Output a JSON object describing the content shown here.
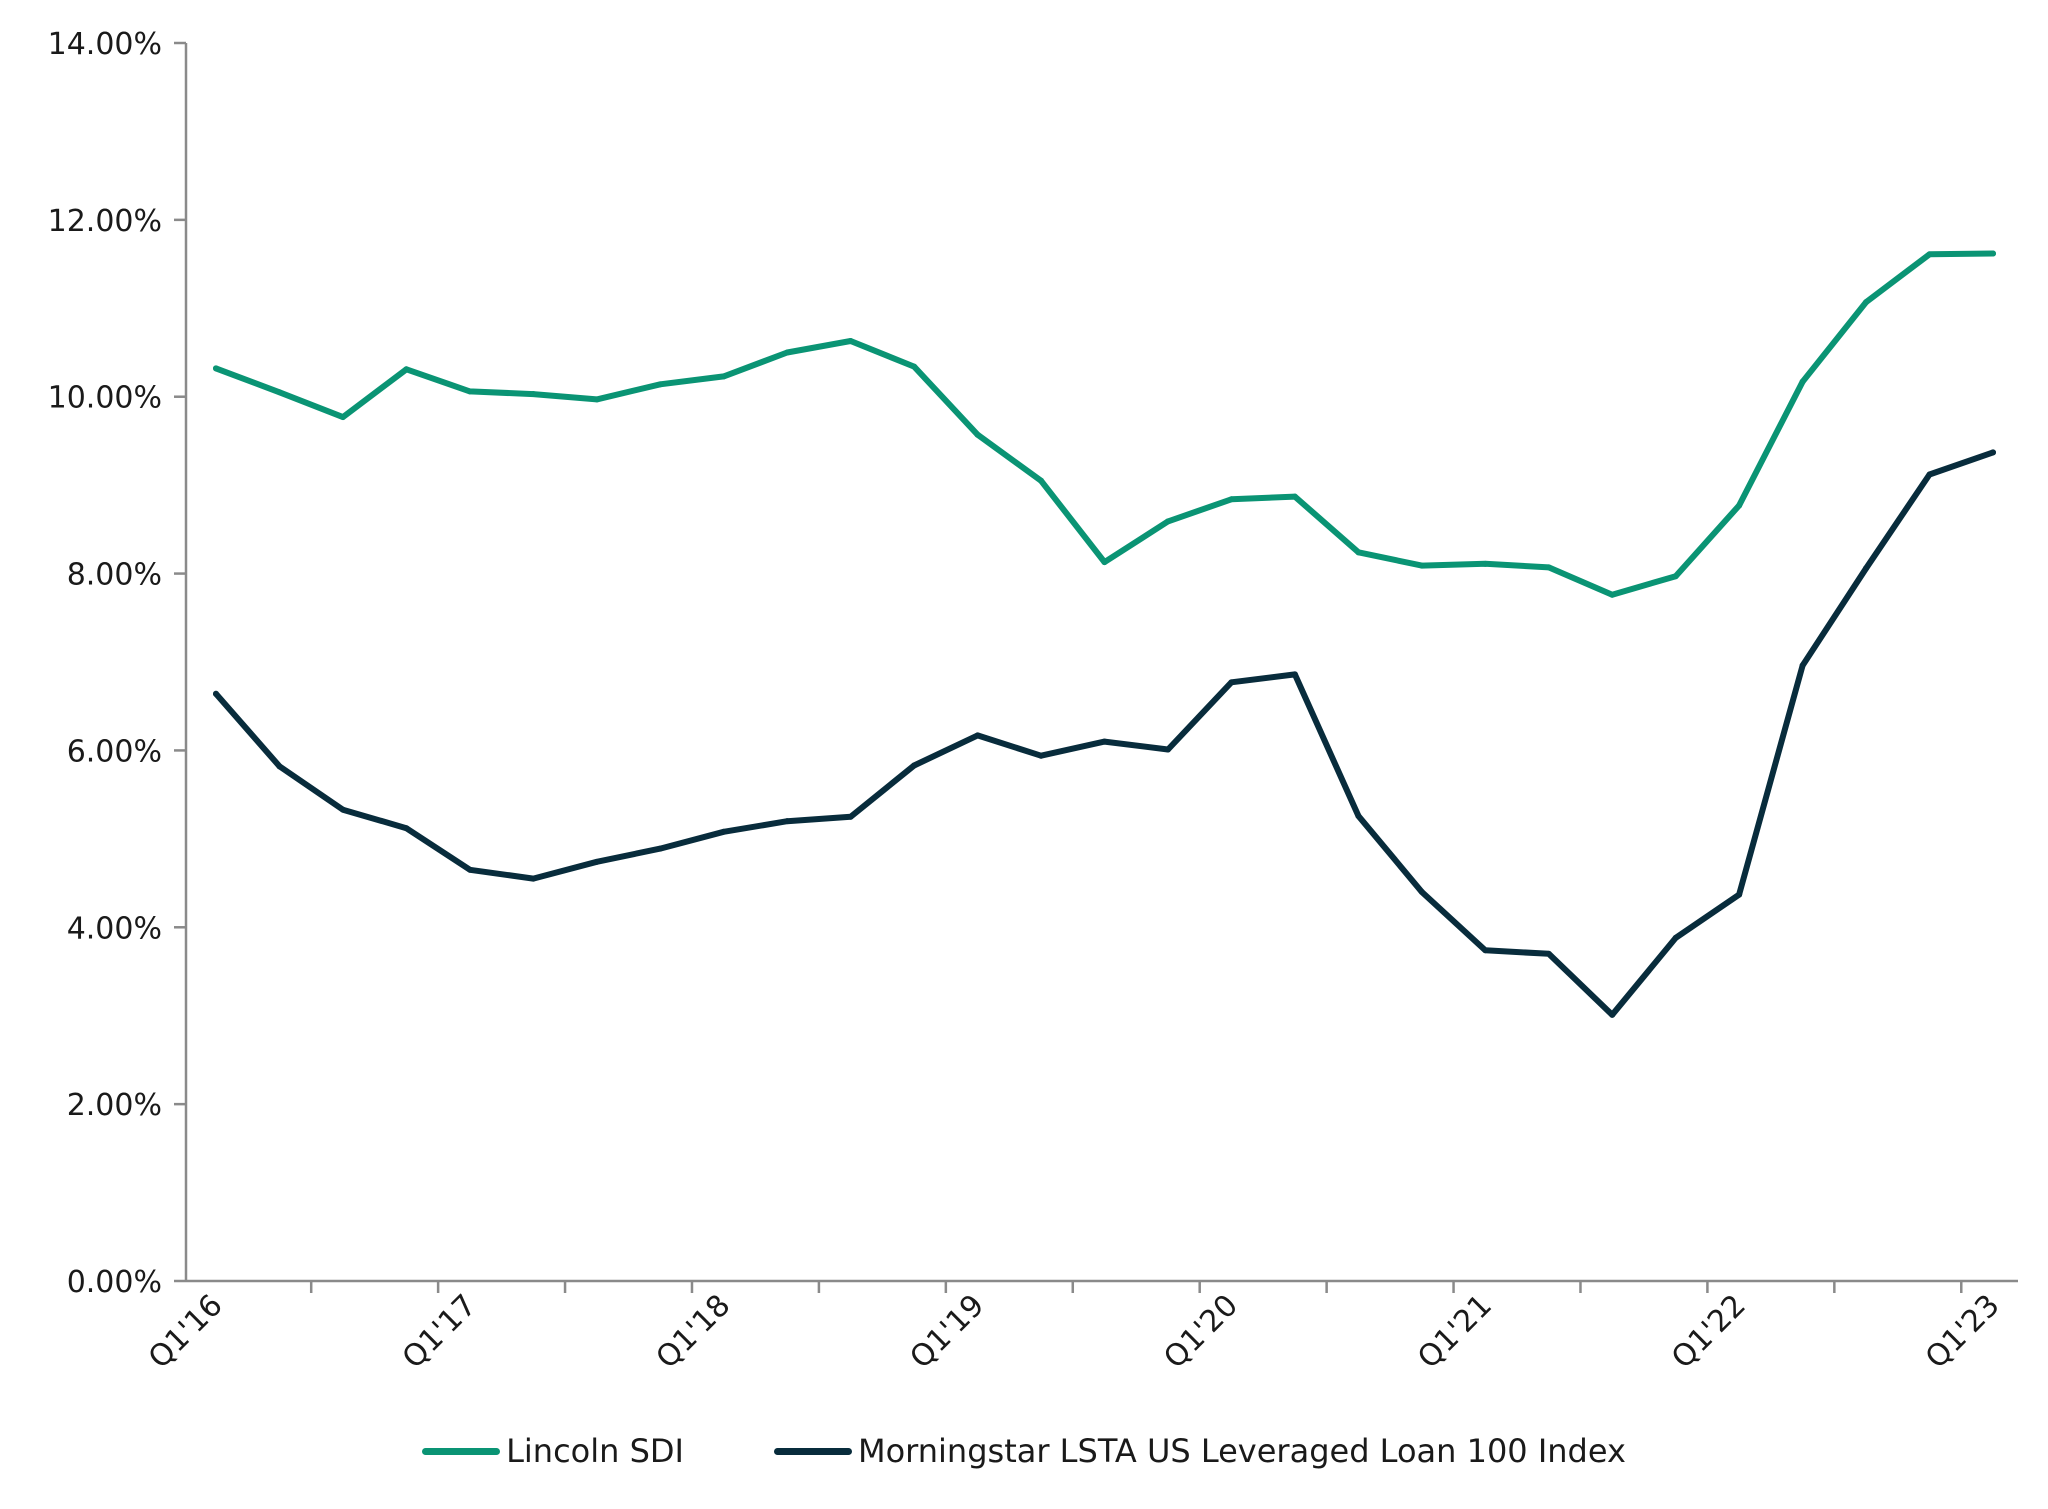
{
  "chart_data": {
    "type": "line",
    "title": "",
    "xlabel": "",
    "ylabel": "",
    "ylim": [
      0,
      14
    ],
    "ytick_values": [
      0,
      2,
      4,
      6,
      8,
      10,
      12,
      14
    ],
    "ytick_labels": [
      "0.00%",
      "2.00%",
      "4.00%",
      "6.00%",
      "8.00%",
      "10.00%",
      "12.00%",
      "14.00%"
    ],
    "x": [
      "Q1'16",
      "Q2'16",
      "Q3'16",
      "Q4'16",
      "Q1'17",
      "Q2'17",
      "Q3'17",
      "Q4'17",
      "Q1'18",
      "Q2'18",
      "Q3'18",
      "Q4'18",
      "Q1'19",
      "Q2'19",
      "Q3'19",
      "Q4'19",
      "Q1'20",
      "Q2'20",
      "Q3'20",
      "Q4'20",
      "Q1'21",
      "Q2'21",
      "Q3'21",
      "Q4'21",
      "Q1'22",
      "Q2'22",
      "Q3'22",
      "Q4'22",
      "Q1'23"
    ],
    "xtick_labels": [
      "Q1'16",
      "Q1'17",
      "Q1'18",
      "Q1'19",
      "Q1'20",
      "Q1'21",
      "Q1'22",
      "Q1'23"
    ],
    "xtick_positions": [
      0,
      4,
      8,
      12,
      16,
      20,
      24,
      28
    ],
    "grid": false,
    "legend_position": "bottom-center",
    "series": [
      {
        "name": "Lincoln SDI",
        "color": "#0a9474",
        "values": [
          10.32,
          10.05,
          9.77,
          10.31,
          10.06,
          10.03,
          9.97,
          10.14,
          10.23,
          10.5,
          10.63,
          10.34,
          9.57,
          9.05,
          8.13,
          8.59,
          8.84,
          8.87,
          8.24,
          8.09,
          8.11,
          8.07,
          7.76,
          7.97,
          8.77,
          10.17,
          11.07,
          11.61,
          11.62
        ]
      },
      {
        "name": "Morningstar LSTA US Leveraged Loan 100 Index",
        "color": "#082c3c",
        "values": [
          6.64,
          5.82,
          5.33,
          5.12,
          4.65,
          4.55,
          4.74,
          4.89,
          5.08,
          5.2,
          5.25,
          5.83,
          6.17,
          5.94,
          6.1,
          6.01,
          6.77,
          6.86,
          5.26,
          4.4,
          3.74,
          3.7,
          3.01,
          3.88,
          4.37,
          6.96,
          8.06,
          9.12,
          9.37
        ]
      }
    ]
  }
}
